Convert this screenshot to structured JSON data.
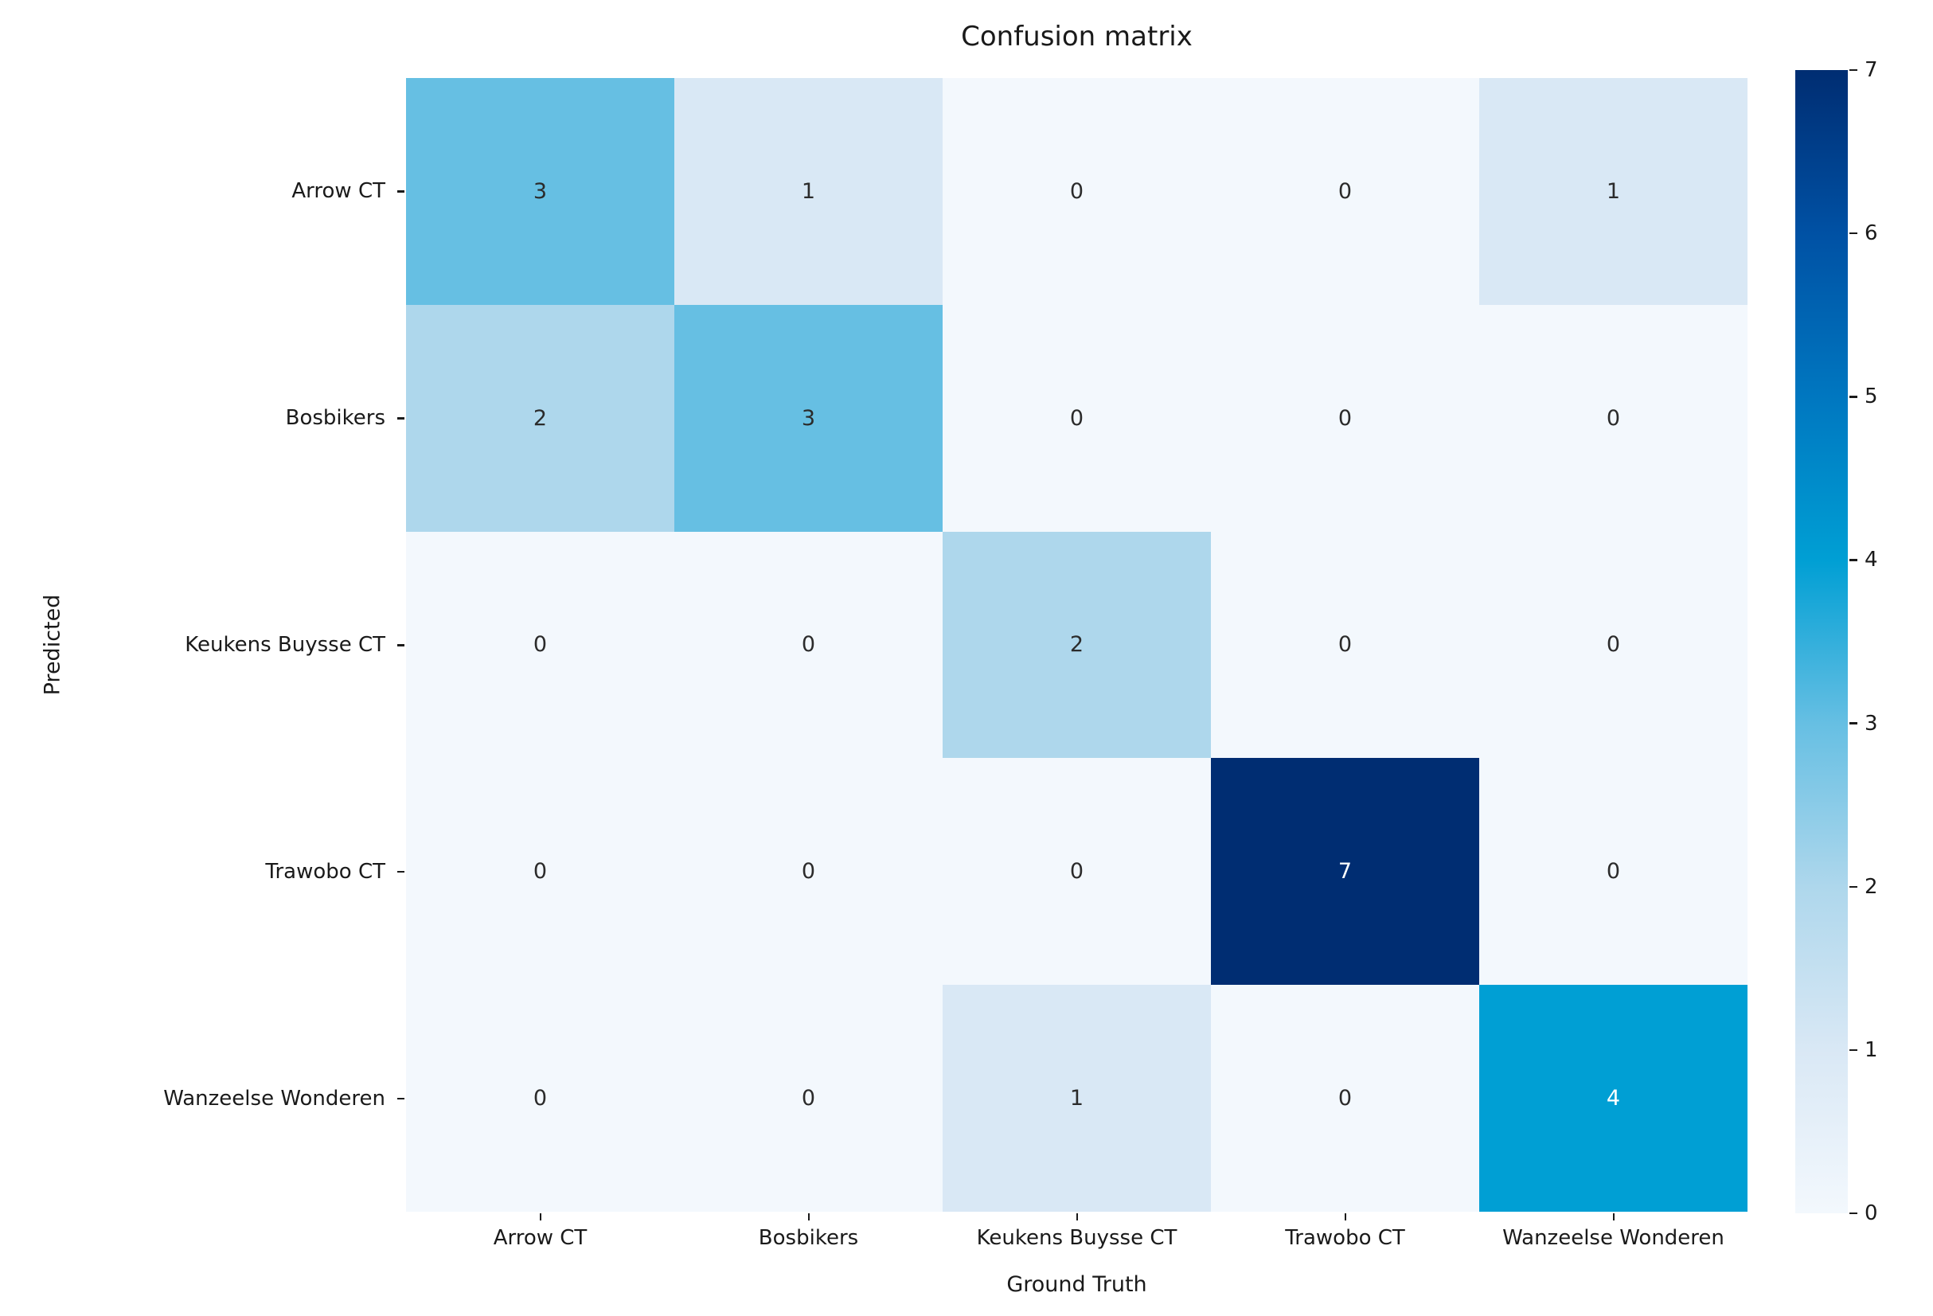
{
  "chart_data": {
    "type": "heatmap",
    "title": "Confusion matrix",
    "xlabel": "Ground Truth",
    "ylabel": "Predicted",
    "categories": [
      "Arrow CT",
      "Bosbikers",
      "Keukens Buysse CT",
      "Trawobo CT",
      "Wanzeelse Wonderen"
    ],
    "row_axis": "Predicted",
    "col_axis": "Ground Truth",
    "matrix": [
      [
        3,
        1,
        0,
        0,
        1
      ],
      [
        2,
        3,
        0,
        0,
        0
      ],
      [
        0,
        0,
        2,
        0,
        0
      ],
      [
        0,
        0,
        0,
        7,
        0
      ],
      [
        0,
        0,
        1,
        0,
        4
      ]
    ],
    "vmin": 0,
    "vmax": 7,
    "colorbar_ticks": [
      7,
      6,
      5,
      4,
      3,
      2,
      1,
      0
    ],
    "colormap": {
      "0": "#f3f8fd",
      "1": "#d9e8f5",
      "2": "#aed7ec",
      "3": "#66bfe3",
      "4": "#009fd4",
      "5": "#0077c0",
      "6": "#0051a4",
      "7": "#002d72"
    },
    "annotation_colors": {
      "light": "#2b2b2b",
      "dark": "#ffffff"
    },
    "white_text_min_value": 4,
    "legend_position": "right-colorbar",
    "grid": false
  }
}
